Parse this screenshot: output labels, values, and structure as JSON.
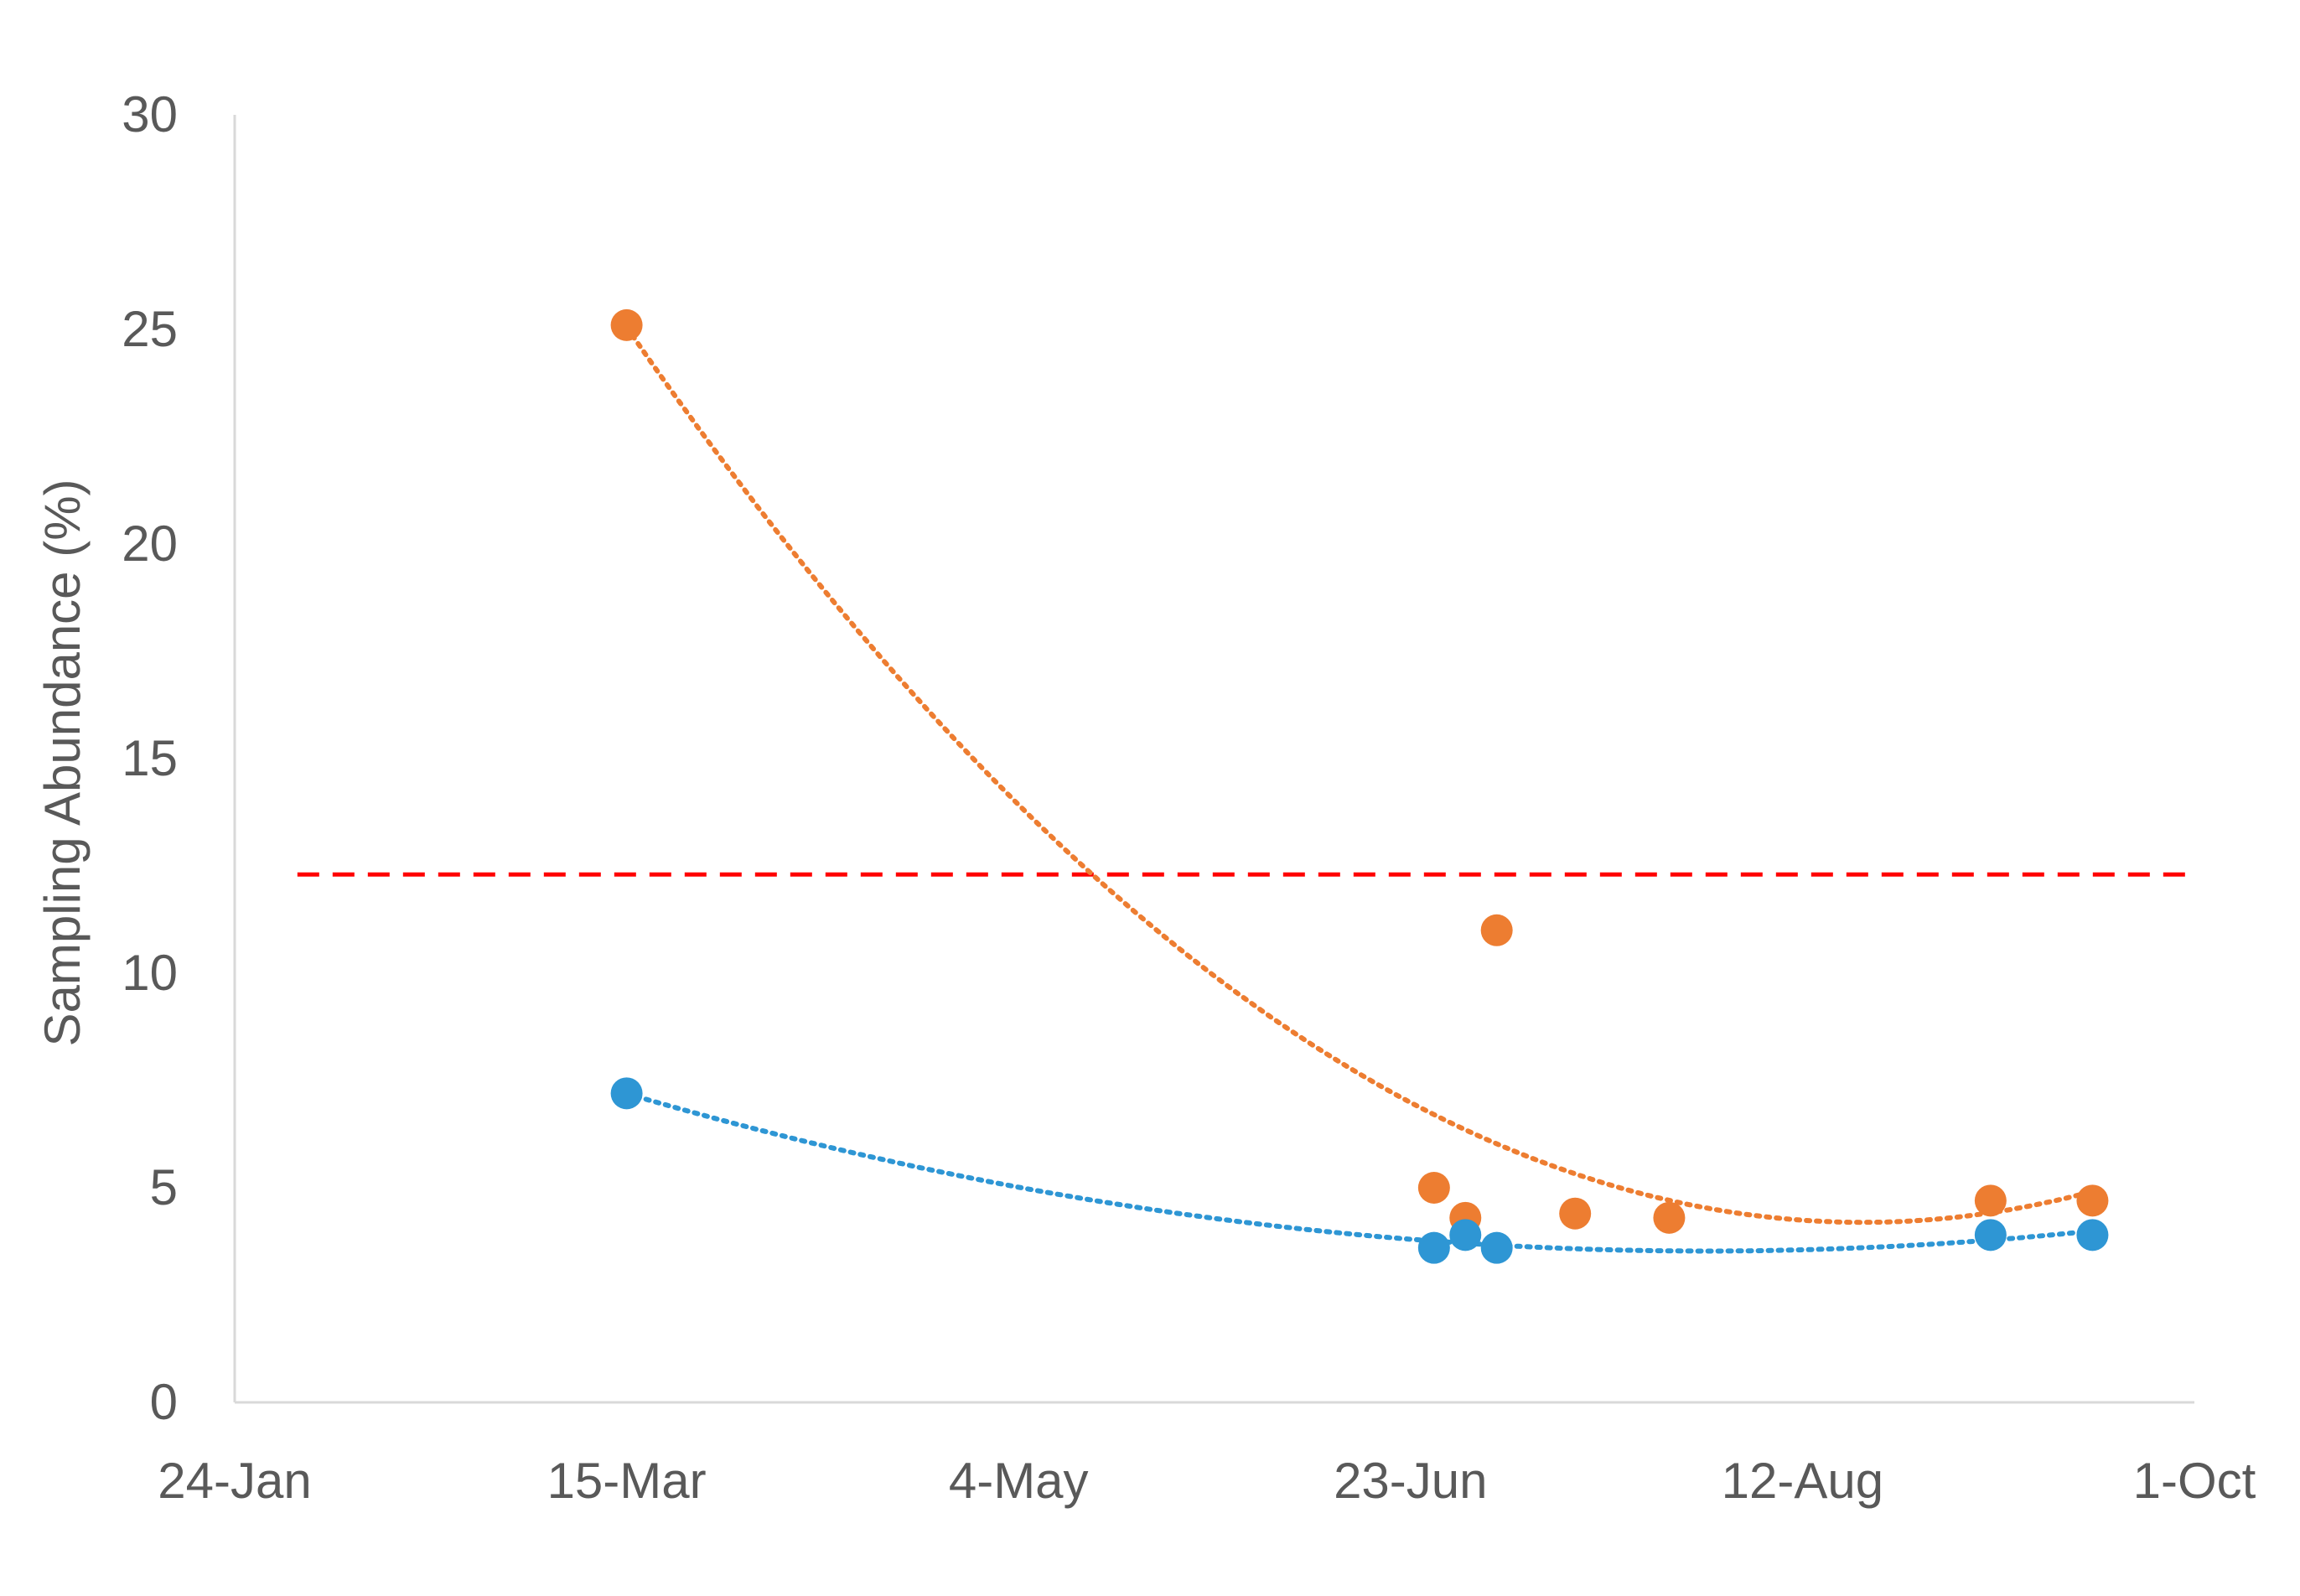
{
  "chart_data": {
    "type": "scatter",
    "title": "",
    "xlabel": "",
    "ylabel": "Sampling Abundance (%)",
    "xlim": [
      "24-Jan",
      "1-Oct"
    ],
    "ylim": [
      0,
      30
    ],
    "x_tick_labels": [
      "24-Jan",
      "15-Mar",
      "4-May",
      "23-Jun",
      "12-Aug",
      "1-Oct"
    ],
    "y_tick_labels": [
      "0",
      "5",
      "10",
      "15",
      "20",
      "25",
      "30"
    ],
    "grid": false,
    "legend": "none",
    "threshold": {
      "y": 12.3,
      "style": "dashed",
      "color": "#ff0000",
      "x_range": [
        "1-Feb",
        "30-Sep"
      ]
    },
    "series": [
      {
        "color": "#ed7d31",
        "marker": "circle",
        "points": [
          {
            "x": "15-Mar",
            "y": 25.1
          },
          {
            "x": "26-Jun",
            "y": 5.0
          },
          {
            "x": "30-Jun",
            "y": 4.3
          },
          {
            "x": "4-Jul",
            "y": 11.0
          },
          {
            "x": "14-Jul",
            "y": 4.4
          },
          {
            "x": "26-Jul",
            "y": 4.3
          },
          {
            "x": "5-Sep",
            "y": 4.7
          },
          {
            "x": "18-Sep",
            "y": 4.7
          }
        ],
        "trendline": {
          "type": "polynomial",
          "order": 2,
          "style": "dotted"
        }
      },
      {
        "color": "#2e96d4",
        "marker": "circle",
        "points": [
          {
            "x": "15-Mar",
            "y": 7.2
          },
          {
            "x": "26-Jun",
            "y": 3.6
          },
          {
            "x": "30-Jun",
            "y": 3.9
          },
          {
            "x": "4-Jul",
            "y": 3.6
          },
          {
            "x": "5-Sep",
            "y": 3.9
          },
          {
            "x": "18-Sep",
            "y": 3.9
          }
        ],
        "trendline": {
          "type": "polynomial",
          "order": 2,
          "style": "dotted"
        }
      }
    ]
  }
}
